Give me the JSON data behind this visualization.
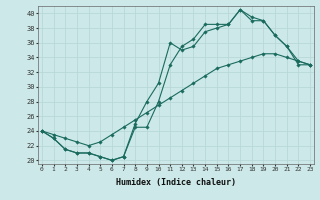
{
  "xlabel": "Humidex (Indice chaleur)",
  "bg_color": "#cce8e8",
  "line_color": "#1a6b5e",
  "grid_color": "#b8d8d8",
  "x_ticks": [
    0,
    1,
    2,
    3,
    4,
    5,
    6,
    7,
    8,
    9,
    10,
    11,
    12,
    13,
    14,
    15,
    16,
    17,
    18,
    19,
    20,
    21,
    22,
    23
  ],
  "ylim": [
    19.5,
    41
  ],
  "xlim": [
    -0.3,
    23.3
  ],
  "y_ticks": [
    20,
    22,
    24,
    26,
    28,
    30,
    32,
    34,
    36,
    38,
    40
  ],
  "line1_x": [
    0,
    1,
    2,
    3,
    4,
    5,
    6,
    7,
    8,
    9,
    10,
    11,
    12,
    13,
    14,
    15,
    16,
    17,
    18,
    19,
    20,
    21,
    22,
    23
  ],
  "line1_y": [
    24.0,
    23.5,
    23.0,
    22.5,
    22.0,
    22.5,
    23.5,
    24.5,
    25.5,
    26.5,
    27.5,
    28.5,
    29.5,
    30.5,
    31.5,
    32.5,
    33.0,
    33.5,
    34.0,
    34.5,
    34.5,
    34.0,
    33.5,
    33.0
  ],
  "line2_x": [
    0,
    1,
    2,
    3,
    4,
    5,
    6,
    7,
    8,
    9,
    10,
    11,
    12,
    13,
    14,
    15,
    16,
    17,
    18,
    19,
    20,
    21,
    22,
    23
  ],
  "line2_y": [
    24.0,
    23.0,
    21.5,
    21.0,
    21.0,
    20.5,
    20.0,
    20.5,
    25.0,
    28.0,
    30.5,
    36.0,
    35.0,
    35.5,
    37.5,
    38.0,
    38.5,
    40.5,
    39.0,
    39.0,
    37.0,
    35.5,
    33.5,
    33.0
  ],
  "line3_x": [
    0,
    1,
    2,
    3,
    4,
    5,
    6,
    7,
    8,
    9,
    10,
    11,
    12,
    13,
    14,
    15,
    16,
    17,
    18,
    19,
    20,
    21,
    22,
    23
  ],
  "line3_y": [
    24.0,
    23.0,
    21.5,
    21.0,
    21.0,
    20.5,
    20.0,
    20.5,
    24.5,
    24.5,
    28.0,
    33.0,
    35.5,
    36.5,
    38.5,
    38.5,
    38.5,
    40.5,
    39.5,
    39.0,
    37.0,
    35.5,
    33.0,
    33.0
  ]
}
